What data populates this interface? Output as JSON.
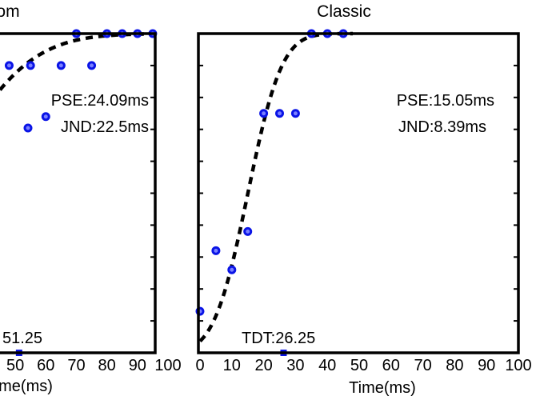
{
  "chart_data": [
    {
      "type": "scatter",
      "title": "om",
      "xlabel": "me(ms)",
      "ylabel": "",
      "xlim": [
        45,
        100
      ],
      "ylim": [
        0,
        1
      ],
      "xticks": [
        50,
        60,
        70,
        80,
        90,
        100
      ],
      "tick_labels": [
        "50",
        "60",
        "70",
        "80",
        "90",
        "100"
      ],
      "series": [
        {
          "values": [
            {
              "x": 48,
              "y": 0.9
            },
            {
              "x": 55,
              "y": 0.9
            },
            {
              "x": 60,
              "y": 0.74
            },
            {
              "x": 65,
              "y": 0.9
            },
            {
              "x": 70,
              "y": 1.0
            },
            {
              "x": 75,
              "y": 0.9
            },
            {
              "x": 80,
              "y": 1.0
            },
            {
              "x": 85,
              "y": 1.0
            },
            {
              "x": 90,
              "y": 1.0
            },
            {
              "x": 95,
              "y": 1.0
            }
          ]
        }
      ],
      "annotations": {
        "pse": "PSE:24.09ms",
        "jnd": "JND:22.5ms",
        "tdt": "51.25"
      },
      "tdt_x": 51.25,
      "fit": {
        "mu": 24.09,
        "sigma": 22.5
      }
    },
    {
      "type": "scatter",
      "title": "Classic",
      "xlabel": "Time(ms)",
      "ylabel": "",
      "xlim": [
        0,
        100
      ],
      "ylim": [
        0,
        1
      ],
      "xticks": [
        0,
        10,
        20,
        30,
        40,
        50,
        60,
        70,
        80,
        90,
        100
      ],
      "tick_labels": [
        "0",
        "10",
        "20",
        "30",
        "40",
        "50",
        "60",
        "70",
        "80",
        "90",
        "100"
      ],
      "series": [
        {
          "values": [
            {
              "x": 0,
              "y": 0.13
            },
            {
              "x": 5,
              "y": 0.32
            },
            {
              "x": 10,
              "y": 0.26
            },
            {
              "x": 15,
              "y": 0.38
            },
            {
              "x": 20,
              "y": 0.75
            },
            {
              "x": 25,
              "y": 0.75
            },
            {
              "x": 30,
              "y": 0.75
            },
            {
              "x": 35,
              "y": 1.0
            },
            {
              "x": 40,
              "y": 1.0
            },
            {
              "x": 45,
              "y": 1.0
            }
          ]
        }
      ],
      "annotations": {
        "pse": "PSE:15.05ms",
        "jnd": "JND:8.39ms",
        "tdt": "TDT:26.25"
      },
      "tdt_x": 26.25,
      "fit": {
        "mu": 15.05,
        "sigma": 8.39
      }
    }
  ]
}
